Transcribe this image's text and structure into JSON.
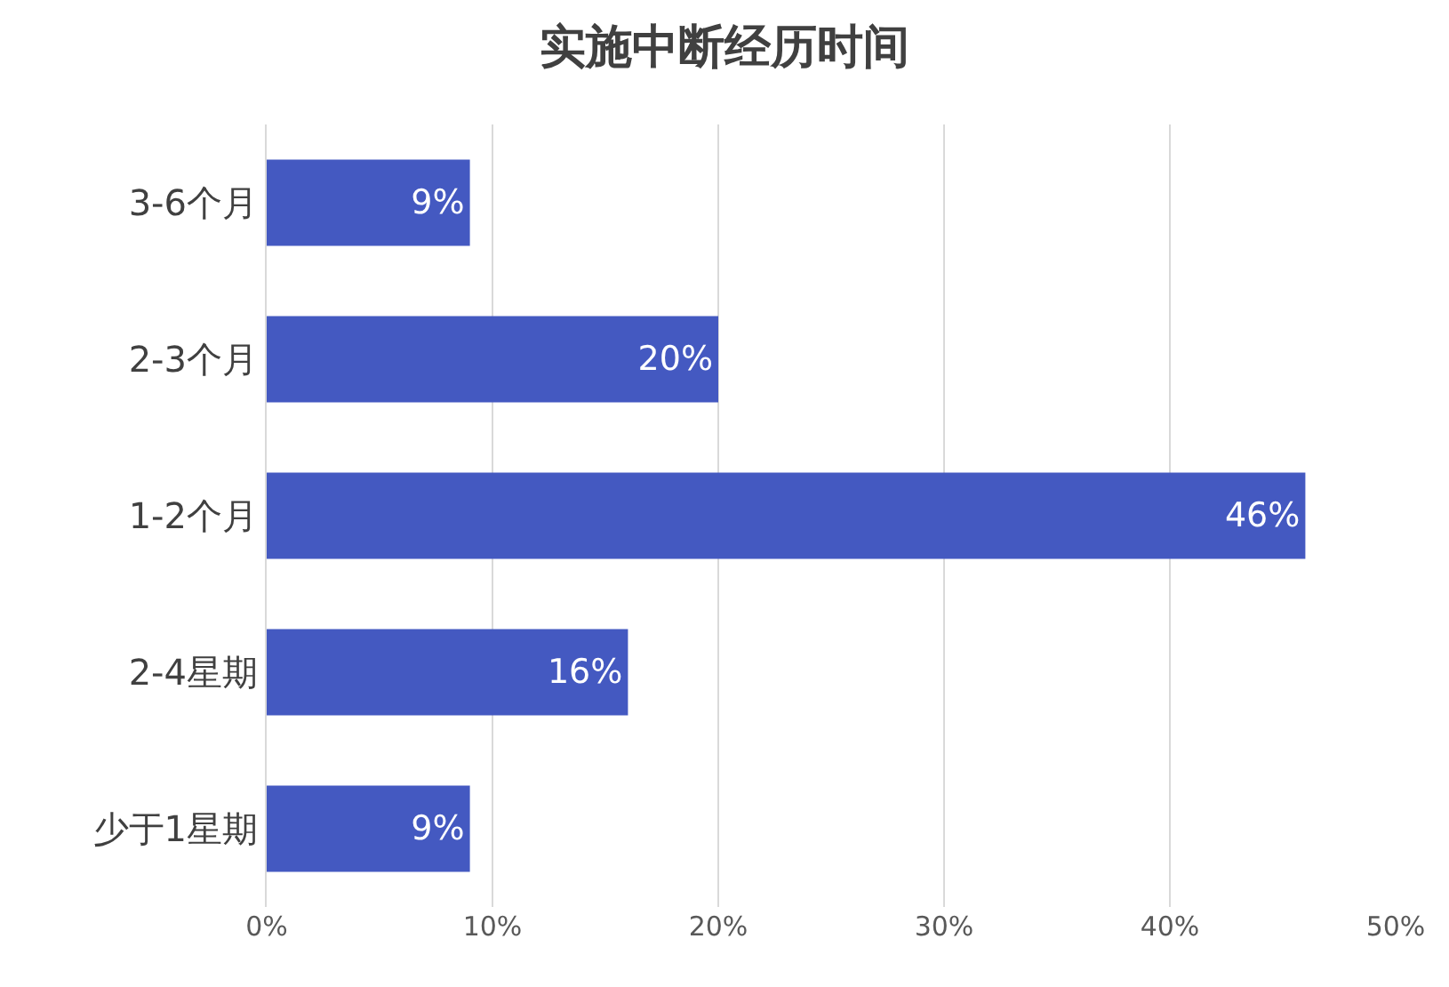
{
  "chart_data": {
    "type": "bar",
    "orientation": "horizontal",
    "title": "实施中断经历时间",
    "categories": [
      "3-6个月",
      "2-3个月",
      "1-2个月",
      "2-4星期",
      "少于1星期"
    ],
    "values": [
      9,
      20,
      46,
      16,
      9
    ],
    "value_labels": [
      "9%",
      "20%",
      "46%",
      "16%",
      "9%"
    ],
    "color": "#4459c1",
    "xlim": [
      0,
      50
    ],
    "xticks": [
      {
        "value": 0,
        "label": "0%"
      },
      {
        "value": 10,
        "label": "10%"
      },
      {
        "value": 20,
        "label": "20%"
      },
      {
        "value": 30,
        "label": "30%"
      },
      {
        "value": 40,
        "label": "40%"
      },
      {
        "value": 50,
        "label": "50%"
      }
    ],
    "grid": "x"
  }
}
